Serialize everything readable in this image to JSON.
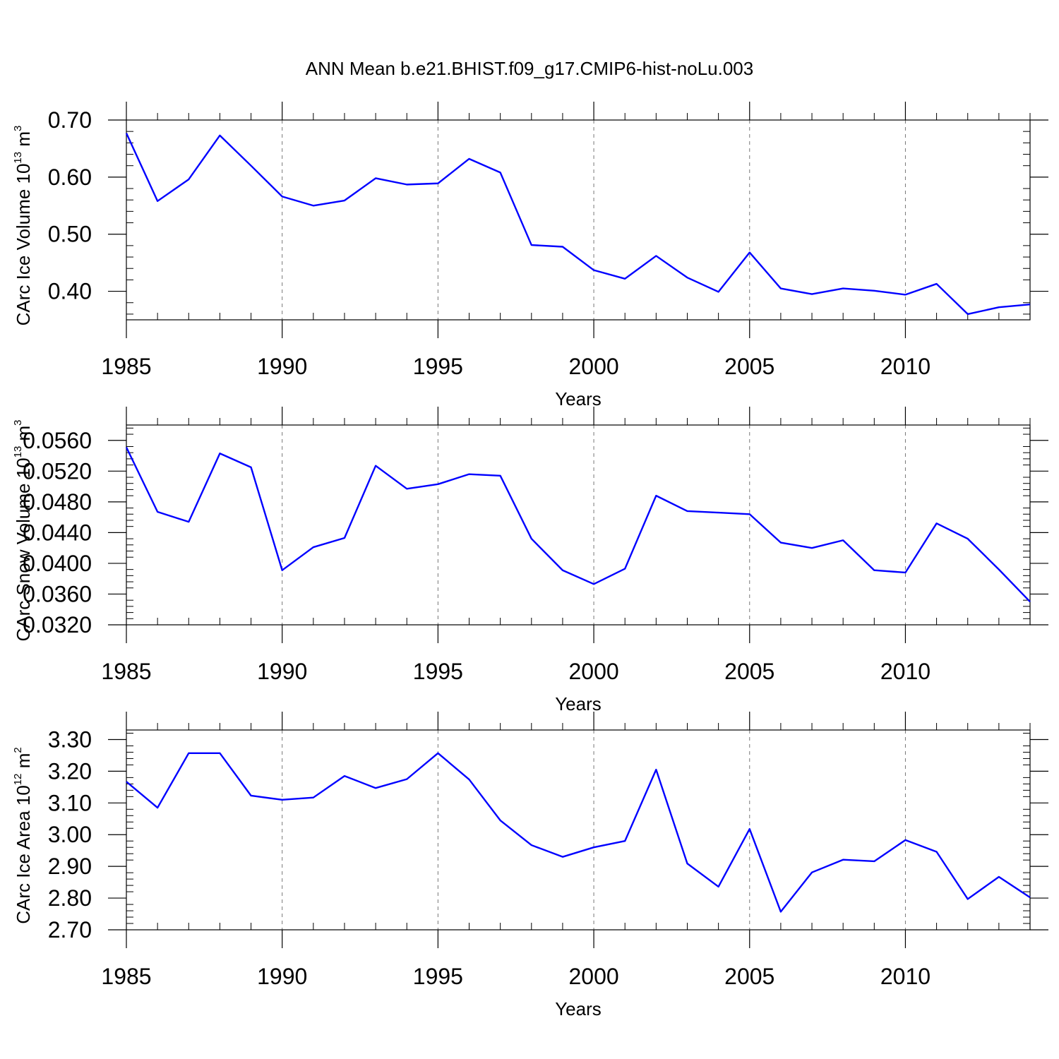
{
  "figure": {
    "title": "ANN Mean b.e21.BHIST.f09_g17.CMIP6-hist-noLu.003"
  },
  "line_color": "#0000ff",
  "chart_data": [
    {
      "type": "line",
      "ylabel_text": "CArc Ice Volume 10",
      "ylabel_exp": "13",
      "ylabel_unit": " m",
      "ylabel_unit_exp": "3",
      "xlabel": "Years",
      "xlim": [
        1985,
        2014
      ],
      "ylim": [
        0.35,
        0.7
      ],
      "yticks": [
        "0.40",
        "0.50",
        "0.60",
        "0.70"
      ],
      "xticks": [
        "1985",
        "1990",
        "1995",
        "2000",
        "2005",
        "2010"
      ],
      "x": [
        1985,
        1986,
        1987,
        1988,
        1989,
        1990,
        1991,
        1992,
        1993,
        1994,
        1995,
        1996,
        1997,
        1998,
        1999,
        2000,
        2001,
        2002,
        2003,
        2004,
        2005,
        2006,
        2007,
        2008,
        2009,
        2010,
        2011,
        2012,
        2013,
        2014
      ],
      "y": [
        0.677,
        0.558,
        0.596,
        0.673,
        0.62,
        0.566,
        0.55,
        0.559,
        0.598,
        0.587,
        0.589,
        0.632,
        0.608,
        0.481,
        0.478,
        0.437,
        0.422,
        0.462,
        0.424,
        0.399,
        0.468,
        0.405,
        0.395,
        0.405,
        0.401,
        0.394,
        0.413,
        0.36,
        0.372,
        0.377
      ]
    },
    {
      "type": "line",
      "ylabel_text": "CArc Snow Volume 10",
      "ylabel_exp": "13",
      "ylabel_unit": " m",
      "ylabel_unit_exp": "3",
      "xlabel": "Years",
      "xlim": [
        1985,
        2014
      ],
      "ylim": [
        0.032,
        0.058
      ],
      "yticks": [
        "0.0320",
        "0.0360",
        "0.0400",
        "0.0440",
        "0.0480",
        "0.0520",
        "0.0560"
      ],
      "xticks": [
        "1985",
        "1990",
        "1995",
        "2000",
        "2005",
        "2010"
      ],
      "x": [
        1985,
        1986,
        1987,
        1988,
        1989,
        1990,
        1991,
        1992,
        1993,
        1994,
        1995,
        1996,
        1997,
        1998,
        1999,
        2000,
        2001,
        2002,
        2003,
        2004,
        2005,
        2006,
        2007,
        2008,
        2009,
        2010,
        2011,
        2012,
        2013,
        2014
      ],
      "y": [
        0.0551,
        0.0467,
        0.0454,
        0.0543,
        0.0525,
        0.0391,
        0.0421,
        0.0433,
        0.0527,
        0.0497,
        0.0503,
        0.0516,
        0.0514,
        0.0432,
        0.0391,
        0.0373,
        0.0393,
        0.0488,
        0.0468,
        0.0466,
        0.0464,
        0.0427,
        0.042,
        0.043,
        0.0391,
        0.0388,
        0.0452,
        0.0432,
        0.0392,
        0.035
      ]
    },
    {
      "type": "line",
      "ylabel_text": "CArc Ice Area 10",
      "ylabel_exp": "12",
      "ylabel_unit": " m",
      "ylabel_unit_exp": "2",
      "xlabel": "Years",
      "xlim": [
        1985,
        2014
      ],
      "ylim": [
        2.7,
        3.33
      ],
      "yticks": [
        "2.70",
        "2.80",
        "2.90",
        "3.00",
        "3.10",
        "3.20",
        "3.30"
      ],
      "xticks": [
        "1985",
        "1990",
        "1995",
        "2000",
        "2005",
        "2010"
      ],
      "x": [
        1985,
        1986,
        1987,
        1988,
        1989,
        1990,
        1991,
        1992,
        1993,
        1994,
        1995,
        1996,
        1997,
        1998,
        1999,
        2000,
        2001,
        2002,
        2003,
        2004,
        2005,
        2006,
        2007,
        2008,
        2009,
        2010,
        2011,
        2012,
        2013,
        2014
      ],
      "y": [
        3.167,
        3.085,
        3.257,
        3.257,
        3.123,
        3.11,
        3.117,
        3.185,
        3.147,
        3.175,
        3.257,
        3.174,
        3.045,
        2.967,
        2.93,
        2.96,
        2.98,
        3.205,
        2.909,
        2.836,
        3.018,
        2.757,
        2.881,
        2.921,
        2.916,
        2.983,
        2.946,
        2.797,
        2.867,
        2.802
      ]
    }
  ]
}
